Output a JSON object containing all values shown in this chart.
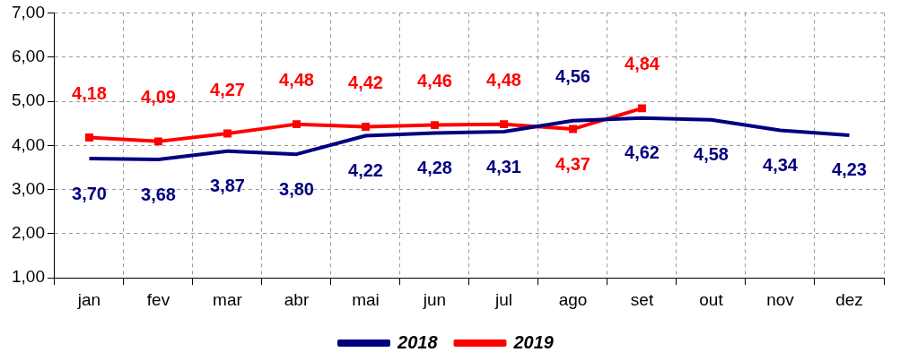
{
  "chart_data": {
    "type": "line",
    "categories": [
      "jan",
      "fev",
      "mar",
      "abr",
      "mai",
      "jun",
      "jul",
      "ago",
      "set",
      "out",
      "nov",
      "dez"
    ],
    "series": [
      {
        "name": "2018",
        "color": "#000080",
        "marker": "none",
        "values": [
          3.7,
          3.68,
          3.87,
          3.8,
          4.22,
          4.28,
          4.31,
          4.56,
          4.62,
          4.58,
          4.34,
          4.23
        ],
        "value_labels": [
          "3,70",
          "3,68",
          "3,87",
          "3,80",
          "4,22",
          "4,28",
          "4,31",
          "4,56",
          "4,62",
          "4,58",
          "4,34",
          "4,23"
        ]
      },
      {
        "name": "2019",
        "color": "#ff0000",
        "marker": "square",
        "values": [
          4.18,
          4.09,
          4.27,
          4.48,
          4.42,
          4.46,
          4.48,
          4.37,
          4.84,
          null,
          null,
          null
        ],
        "value_labels": [
          "4,18",
          "4,09",
          "4,27",
          "4,48",
          "4,42",
          "4,46",
          "4,48",
          "4,37",
          "4,84",
          null,
          null,
          null
        ]
      }
    ],
    "ylim": [
      1,
      7
    ],
    "yticks": [
      {
        "value": 1,
        "label": "1,00"
      },
      {
        "value": 2,
        "label": "2,00"
      },
      {
        "value": 3,
        "label": "3,00"
      },
      {
        "value": 4,
        "label": "4,00"
      },
      {
        "value": 5,
        "label": "5,00"
      },
      {
        "value": 6,
        "label": "6,00"
      },
      {
        "value": 7,
        "label": "7,00"
      }
    ],
    "grid": true,
    "legend": "bottom",
    "line_style": "solid"
  }
}
